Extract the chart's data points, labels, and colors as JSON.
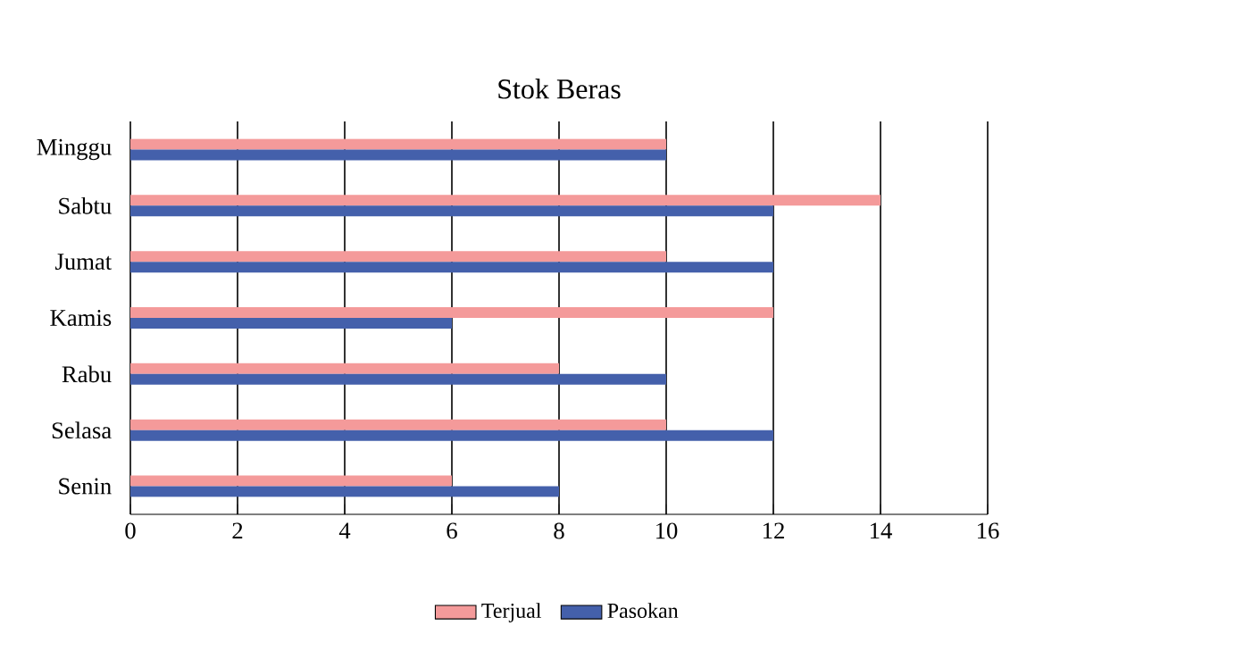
{
  "chart_data": {
    "type": "bar",
    "orientation": "horizontal",
    "title": "Stok Beras",
    "categories": [
      "Minggu",
      "Sabtu",
      "Jumat",
      "Kamis",
      "Rabu",
      "Selasa",
      "Senin"
    ],
    "series": [
      {
        "name": "Terjual",
        "color": "#f49a9a",
        "values": [
          10,
          14,
          10,
          12,
          8,
          10,
          6
        ]
      },
      {
        "name": "Pasokan",
        "color": "#4460ab",
        "values": [
          10,
          12,
          12,
          6,
          10,
          12,
          8
        ]
      }
    ],
    "xlim": [
      0,
      16
    ],
    "xticks": [
      0,
      2,
      4,
      6,
      8,
      10,
      12,
      14,
      16
    ],
    "grid": "x",
    "legend": "bottom"
  }
}
